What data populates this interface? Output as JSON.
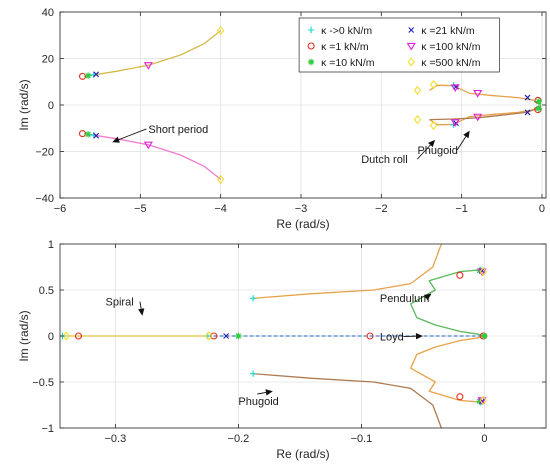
{
  "colors": {
    "k0": "#1ad6d6",
    "k1": "#e0301e",
    "k10": "#2ecc40",
    "k21": "#1f1fb4",
    "k100": "#e020e0",
    "k500": "#f0e030",
    "short_upper": "#d9b84a",
    "short_lower": "#f07ad0",
    "dutch": "#e8a24a",
    "phugoid": "#b07a50",
    "pendulum": "#5cb85c",
    "loyd": "#4a7fd0",
    "spiral": "#e8c040"
  },
  "chart_data": [
    {
      "type": "scatter",
      "xlabel": "Re (rad/s)",
      "ylabel": "Im (rad/s)",
      "xlim": [
        -6,
        0.05
      ],
      "ylim": [
        -40,
        40
      ],
      "xticks": [
        -6,
        -5,
        -4,
        -3,
        -2,
        -1,
        0
      ],
      "yticks": [
        -40,
        -20,
        0,
        20,
        40
      ],
      "xtick_labels": [
        "−6",
        "−5",
        "−4",
        "−3",
        "−2",
        "−1",
        "0"
      ],
      "ytick_labels": [
        "−40",
        "−20",
        "0",
        "20",
        "40"
      ],
      "grid": true,
      "legend": {
        "placement": "top-right",
        "columns": 2,
        "entries": [
          {
            "label": "κ ->0 kN/m",
            "marker": "plus",
            "color_key": "k0"
          },
          {
            "label": "κ =21 kN/m",
            "marker": "x",
            "color_key": "k21"
          },
          {
            "label": "κ =1 kN/m",
            "marker": "circle",
            "color_key": "k1"
          },
          {
            "label": "κ =100 kN/m",
            "marker": "triangle-down",
            "color_key": "k100"
          },
          {
            "label": "κ =10 kN/m",
            "marker": "asterisk",
            "color_key": "k10"
          },
          {
            "label": "κ =500 kN/m",
            "marker": "diamond",
            "color_key": "k500"
          }
        ]
      },
      "annotations": [
        {
          "text": "Short period",
          "x": -4.9,
          "y": -12,
          "arrow_to": [
            -5.35,
            -16
          ]
        },
        {
          "text": "Dutch roll",
          "x": -2.25,
          "y": -25,
          "arrow_to": [
            -1.33,
            -15
          ]
        },
        {
          "text": "Phugoid",
          "x": -1.55,
          "y": -21,
          "arrow_to": [
            -0.9,
            -11
          ]
        }
      ],
      "lines": [
        {
          "name": "short-upper",
          "color_key": "short_upper",
          "x": [
            -5.7,
            -5.6,
            -5.3,
            -4.9,
            -4.5,
            -4.2,
            -4.0
          ],
          "y": [
            12.3,
            12.8,
            14.5,
            17.1,
            21.5,
            26.5,
            32.0
          ]
        },
        {
          "name": "short-lower",
          "color_key": "short_lower",
          "x": [
            -5.7,
            -5.6,
            -5.3,
            -4.9,
            -4.5,
            -4.2,
            -4.0
          ],
          "y": [
            -12.3,
            -12.8,
            -14.5,
            -17.1,
            -21.5,
            -26.5,
            -32.0
          ]
        },
        {
          "name": "dutch-upper",
          "color_key": "dutch",
          "x": [
            -1.4,
            -1.3,
            -1.1,
            -0.9,
            -0.6,
            -0.3,
            -0.1
          ],
          "y": [
            6.3,
            8.5,
            8.3,
            5.0,
            4.0,
            3.2,
            2.0
          ]
        },
        {
          "name": "dutch-lower",
          "color_key": "dutch",
          "x": [
            -1.4,
            -1.3,
            -1.1,
            -0.9,
            -0.6,
            -0.3,
            -0.1
          ],
          "y": [
            -6.3,
            -8.5,
            -8.3,
            -5.0,
            -4.0,
            -3.2,
            -2.0
          ]
        },
        {
          "name": "phugoid-lower",
          "color_key": "phugoid",
          "x": [
            -1.4,
            -1.1,
            -0.8,
            -0.5,
            -0.2,
            -0.05
          ],
          "y": [
            -6.3,
            -6.0,
            -5.5,
            -4.4,
            -3.2,
            -1.5
          ]
        },
        {
          "name": "green-near-zero",
          "color_key": "pendulum",
          "x": [
            -0.1,
            -0.03,
            -0.02,
            -0.03,
            -0.1
          ],
          "y": [
            1.5,
            1.0,
            0.0,
            -1.0,
            -1.5
          ]
        }
      ],
      "points": [
        {
          "key": "k0",
          "x": [
            -5.58,
            -5.58,
            -1.1,
            -1.1
          ],
          "y": [
            13.0,
            -13.0,
            8.5,
            -8.5
          ]
        },
        {
          "key": "k1",
          "x": [
            -5.72,
            -5.72,
            -0.05,
            -0.05
          ],
          "y": [
            12.3,
            -12.3,
            2.0,
            -2.0
          ]
        },
        {
          "key": "k10",
          "x": [
            -5.65,
            -5.65,
            -0.04,
            -0.04
          ],
          "y": [
            12.6,
            -12.6,
            1.5,
            -1.5
          ]
        },
        {
          "key": "k21",
          "x": [
            -5.55,
            -5.55,
            -1.07,
            -1.07,
            -0.18,
            -0.18
          ],
          "y": [
            13.2,
            -13.2,
            7.8,
            -7.8,
            3.2,
            -3.2
          ]
        },
        {
          "key": "k100",
          "x": [
            -4.9,
            -4.9,
            -1.08,
            -1.08,
            -0.8,
            -0.8
          ],
          "y": [
            17.1,
            -17.1,
            7.5,
            -7.5,
            5.1,
            -5.1
          ]
        },
        {
          "key": "k500",
          "x": [
            -4.0,
            -4.0,
            -1.35,
            -1.35,
            -1.55,
            -1.55
          ],
          "y": [
            32.0,
            -32.0,
            8.8,
            -8.8,
            6.3,
            -6.3
          ]
        }
      ]
    },
    {
      "type": "scatter",
      "xlabel": "Re (rad/s)",
      "ylabel": "Im (rad/s)",
      "xlim": [
        -0.345,
        0.05
      ],
      "ylim": [
        -1,
        1
      ],
      "xticks": [
        -0.3,
        -0.2,
        -0.1,
        0
      ],
      "yticks": [
        -1,
        -0.5,
        0,
        0.5,
        1
      ],
      "xtick_labels": [
        "−0.3",
        "−0.2",
        "−0.1",
        "0"
      ],
      "ytick_labels": [
        "−1",
        "−0.5",
        "0",
        "0.5",
        "1"
      ],
      "grid": true,
      "annotations": [
        {
          "text": "Spiral",
          "x": -0.308,
          "y": 0.33,
          "arrow_to": [
            -0.278,
            0.22
          ]
        },
        {
          "text": "Pendulum",
          "x": -0.085,
          "y": 0.37,
          "arrow_to": [
            -0.043,
            0.46
          ]
        },
        {
          "text": "Loyd",
          "x": -0.085,
          "y": -0.05,
          "arrow_to": [
            -0.05,
            0.0
          ]
        },
        {
          "text": "Phugoid",
          "x": -0.2,
          "y": -0.75,
          "arrow_to": [
            -0.172,
            -0.6
          ]
        }
      ],
      "lines": [
        {
          "name": "spiral",
          "color_key": "spiral",
          "style": "solid",
          "x": [
            -0.345,
            -0.33,
            -0.3,
            -0.26,
            -0.225
          ],
          "y": [
            0,
            0,
            0,
            0,
            0
          ]
        },
        {
          "name": "loyd",
          "color_key": "loyd",
          "style": "dashed",
          "x": [
            -0.225,
            -0.2,
            -0.15,
            -0.1,
            -0.05,
            0.0
          ],
          "y": [
            0,
            0,
            0,
            0,
            0,
            0
          ]
        },
        {
          "name": "dutch-upper",
          "color_key": "dutch",
          "style": "solid",
          "x": [
            -0.188,
            -0.14,
            -0.09,
            -0.06,
            -0.042,
            -0.035
          ],
          "y": [
            0.41,
            0.46,
            0.5,
            0.57,
            0.75,
            1.0
          ]
        },
        {
          "name": "phugoid-lower",
          "color_key": "phugoid",
          "style": "solid",
          "x": [
            -0.188,
            -0.14,
            -0.09,
            -0.06,
            -0.042,
            -0.035
          ],
          "y": [
            -0.41,
            -0.46,
            -0.5,
            -0.57,
            -0.75,
            -1.0
          ]
        },
        {
          "name": "pendulum-upper",
          "color_key": "pendulum",
          "style": "solid",
          "x": [
            -0.003,
            -0.02,
            -0.045,
            -0.04,
            -0.06,
            -0.055,
            -0.04,
            -0.02,
            -0.005,
            0.0
          ],
          "y": [
            0.72,
            0.7,
            0.6,
            0.5,
            0.35,
            0.2,
            0.12,
            0.05,
            0.02,
            0.0
          ]
        },
        {
          "name": "pendulum-lower",
          "color_key": "dutch",
          "style": "solid",
          "x": [
            -0.003,
            -0.02,
            -0.045,
            -0.04,
            -0.06,
            -0.055,
            -0.04,
            -0.02,
            -0.005,
            0.0
          ],
          "y": [
            -0.72,
            -0.7,
            -0.6,
            -0.5,
            -0.35,
            -0.2,
            -0.12,
            -0.05,
            -0.02,
            0.0
          ]
        }
      ],
      "points": [
        {
          "key": "k0",
          "x": [
            -0.188,
            -0.188,
            -0.343,
            -0.225,
            -0.003,
            -0.003
          ],
          "y": [
            0.41,
            -0.41,
            0.0,
            0.0,
            0.72,
            -0.72
          ]
        },
        {
          "key": "k1",
          "x": [
            -0.33,
            -0.22,
            -0.093,
            -0.02,
            -0.02,
            -0.001
          ],
          "y": [
            0.0,
            0.0,
            0.0,
            0.66,
            -0.66,
            0.0
          ]
        },
        {
          "key": "k10",
          "x": [
            -0.2,
            -0.004,
            -0.004,
            0.0
          ],
          "y": [
            0.0,
            0.71,
            -0.71,
            0.0
          ]
        },
        {
          "key": "k21",
          "x": [
            -0.21,
            -0.002,
            -0.002
          ],
          "y": [
            0.0,
            0.71,
            -0.71
          ]
        },
        {
          "key": "k100",
          "x": [
            -0.002,
            -0.002
          ],
          "y": [
            0.7,
            -0.7
          ]
        },
        {
          "key": "k500",
          "x": [
            -0.34,
            -0.224,
            -0.001,
            -0.001
          ],
          "y": [
            0.0,
            0.0,
            0.7,
            -0.7
          ]
        }
      ]
    }
  ]
}
